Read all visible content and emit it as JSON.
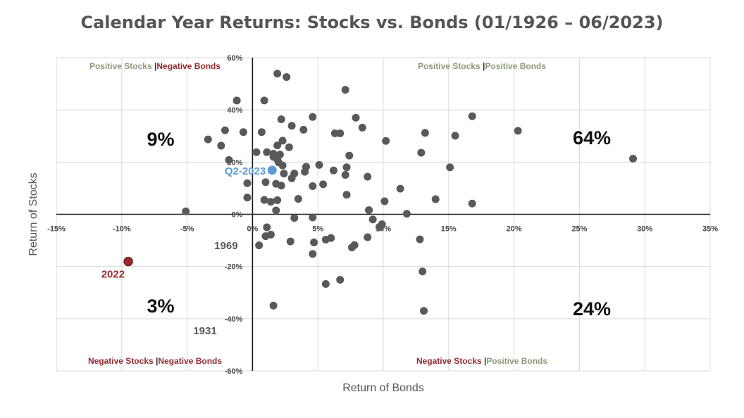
{
  "chart_data": {
    "type": "scatter",
    "title": "Calendar Year Returns: Stocks vs. Bonds (01/1926 – 06/2023)",
    "xlabel": "Return of Bonds",
    "ylabel": "Return of Stocks",
    "xlim": [
      -15,
      35
    ],
    "ylim": [
      -60,
      60
    ],
    "x_ticks": [
      "-15%",
      "-10%",
      "-5%",
      "0%",
      "5%",
      "10%",
      "15%",
      "20%",
      "25%",
      "30%",
      "35%"
    ],
    "y_ticks": [
      "-60%",
      "-40%",
      "-20%",
      "0%",
      "20%",
      "40%",
      "60%"
    ],
    "grid": true,
    "colors": {
      "points": "#595959",
      "highlight_2022": "#9b2a2e",
      "highlight_q2_2023": "#5b9bd5",
      "positive": "#8a9a78",
      "negative": "#952a2e"
    },
    "quadrants": {
      "top_left": {
        "part1": "Positive Stocks",
        "sep": "|",
        "part2": "Negative Bonds",
        "pct": "9%"
      },
      "top_right": {
        "part1": "Positive Stocks",
        "sep": "|",
        "part2": "Positive Bonds",
        "pct": "64%"
      },
      "bottom_left": {
        "part1": "Negative Stocks",
        "sep": "|",
        "part2": "Negative Bonds",
        "pct": "3%"
      },
      "bottom_right": {
        "part1": "Negative Stocks",
        "sep": "|",
        "part2": "Positive Bonds",
        "pct": "24%"
      }
    },
    "highlights": [
      {
        "label": "2022",
        "x": -9.5,
        "y": -18.1
      },
      {
        "label": "Q2-2023",
        "x": 1.5,
        "y": 16.9
      }
    ],
    "annotations": [
      {
        "label": "1969",
        "x": -0.8,
        "y": -8.8
      },
      {
        "label": "1931",
        "x": -2.3,
        "y": -43.3
      }
    ],
    "points": [
      [
        1.9,
        53.9
      ],
      [
        2.6,
        52.6
      ],
      [
        7.1,
        47.7
      ],
      [
        -1.2,
        43.6
      ],
      [
        0.9,
        43.6
      ],
      [
        2.2,
        36.4
      ],
      [
        4.6,
        37.3
      ],
      [
        7.9,
        37.0
      ],
      [
        16.8,
        37.6
      ],
      [
        3.0,
        33.9
      ],
      [
        8.4,
        33.2
      ],
      [
        3.9,
        32.4
      ],
      [
        -2.1,
        32.2
      ],
      [
        -0.7,
        31.5
      ],
      [
        0.7,
        31.5
      ],
      [
        6.3,
        31.0
      ],
      [
        6.7,
        31.0
      ],
      [
        13.2,
        31.2
      ],
      [
        20.3,
        32.0
      ],
      [
        15.5,
        30.1
      ],
      [
        -3.4,
        28.7
      ],
      [
        2.3,
        28.2
      ],
      [
        10.2,
        28.1
      ],
      [
        -2.4,
        26.3
      ],
      [
        1.9,
        26.4
      ],
      [
        2.8,
        25.7
      ],
      [
        0.3,
        23.8
      ],
      [
        1.1,
        23.8
      ],
      [
        1.6,
        23.2
      ],
      [
        2.1,
        22.9
      ],
      [
        7.4,
        22.5
      ],
      [
        12.9,
        23.6
      ],
      [
        29.1,
        21.3
      ],
      [
        1.6,
        22.0
      ],
      [
        1.9,
        21.0
      ],
      [
        -1.8,
        20.8
      ],
      [
        2.0,
        19.9
      ],
      [
        2.3,
        18.7
      ],
      [
        4.1,
        18.2
      ],
      [
        5.1,
        18.9
      ],
      [
        7.2,
        18.0
      ],
      [
        15.1,
        18.0
      ],
      [
        4.0,
        16.3
      ],
      [
        6.2,
        16.8
      ],
      [
        2.4,
        15.6
      ],
      [
        3.2,
        15.6
      ],
      [
        7.1,
        15.1
      ],
      [
        8.8,
        14.4
      ],
      [
        3.0,
        13.8
      ],
      [
        -0.4,
        11.9
      ],
      [
        1.0,
        12.3
      ],
      [
        1.8,
        11.7
      ],
      [
        2.2,
        11.0
      ],
      [
        4.6,
        10.8
      ],
      [
        5.4,
        11.5
      ],
      [
        11.3,
        9.8
      ],
      [
        7.2,
        7.5
      ],
      [
        -0.4,
        6.4
      ],
      [
        0.9,
        5.5
      ],
      [
        1.4,
        4.8
      ],
      [
        1.9,
        5.4
      ],
      [
        3.5,
        5.9
      ],
      [
        10.1,
        5.0
      ],
      [
        14.0,
        5.8
      ],
      [
        16.8,
        4.1
      ],
      [
        -5.1,
        1.1
      ],
      [
        1.8,
        1.5
      ],
      [
        8.9,
        1.6
      ],
      [
        11.8,
        0.2
      ],
      [
        3.2,
        -1.4
      ],
      [
        4.6,
        -1.2
      ],
      [
        9.2,
        -2.0
      ],
      [
        9.7,
        -4.9
      ],
      [
        9.9,
        -3.8
      ],
      [
        1.1,
        -5.0
      ],
      [
        1.0,
        -8.4
      ],
      [
        1.4,
        -7.8
      ],
      [
        4.7,
        -10.8
      ],
      [
        5.6,
        -9.7
      ],
      [
        6.0,
        -9.1
      ],
      [
        8.8,
        -8.8
      ],
      [
        7.8,
        -11.8
      ],
      [
        7.6,
        -12.7
      ],
      [
        12.8,
        -9.6
      ],
      [
        2.9,
        -10.4
      ],
      [
        0.5,
        -11.9
      ],
      [
        4.6,
        -15.2
      ],
      [
        13.0,
        -21.9
      ],
      [
        6.7,
        -25.1
      ],
      [
        5.6,
        -26.7
      ],
      [
        1.6,
        -35.0
      ],
      [
        13.1,
        -37.0
      ]
    ]
  }
}
